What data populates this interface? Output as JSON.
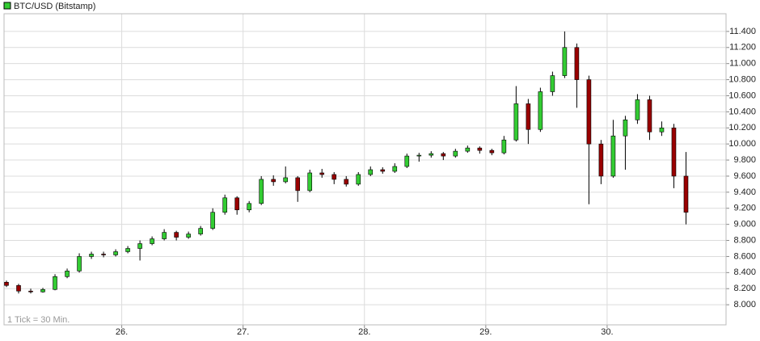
{
  "chart_data": {
    "type": "candlestick",
    "annotation": "1 Tick = 30 Min.",
    "series": [
      {
        "name": "BTC/USD (Bitstamp)",
        "up_color": "#33cc33",
        "down_color": "#990000",
        "open": [
          8280,
          8240,
          8170,
          8160,
          8190,
          8350,
          8420,
          8600,
          8630,
          8620,
          8660,
          8700,
          8760,
          8820,
          8900,
          8840,
          8880,
          8950,
          9150,
          9330,
          9180,
          9260,
          9560,
          9530,
          9580,
          9420,
          9640,
          9620,
          9560,
          9500,
          9620,
          9680,
          9660,
          9720,
          9850,
          9860,
          9880,
          9850,
          9910,
          9950,
          9920,
          9890,
          10050,
          10500,
          10180,
          10650,
          10850,
          11200,
          10800,
          10000,
          9600,
          10100,
          10300,
          10550,
          10150,
          10200,
          9600
        ],
        "high": [
          8300,
          8260,
          8200,
          8210,
          8380,
          8450,
          8640,
          8660,
          8660,
          8690,
          8730,
          8800,
          8850,
          8940,
          8920,
          8910,
          8980,
          9200,
          9370,
          9350,
          9290,
          9600,
          9610,
          9720,
          9600,
          9680,
          9690,
          9650,
          9600,
          9650,
          9720,
          9710,
          9760,
          9880,
          9890,
          9910,
          9900,
          9940,
          9980,
          9970,
          9940,
          10100,
          10720,
          10560,
          10700,
          10900,
          11400,
          11250,
          10850,
          10050,
          10300,
          10350,
          10620,
          10600,
          10280,
          10250,
          9900
        ],
        "low": [
          8220,
          8140,
          8140,
          8150,
          8180,
          8330,
          8400,
          8570,
          8590,
          8600,
          8640,
          8550,
          8740,
          8800,
          8800,
          8820,
          8860,
          8930,
          9120,
          9120,
          9150,
          9240,
          9480,
          9510,
          9280,
          9400,
          9580,
          9500,
          9470,
          9480,
          9600,
          9630,
          9640,
          9700,
          9780,
          9830,
          9800,
          9830,
          9890,
          9880,
          9860,
          9870,
          10030,
          10000,
          10150,
          10600,
          10820,
          10450,
          9250,
          9500,
          9580,
          9680,
          10250,
          10050,
          10100,
          9450,
          9000
        ],
        "close": [
          8240,
          8170,
          8160,
          8190,
          8350,
          8420,
          8600,
          8630,
          8620,
          8660,
          8700,
          8760,
          8820,
          8900,
          8840,
          8880,
          8950,
          9150,
          9330,
          9180,
          9260,
          9560,
          9530,
          9580,
          9420,
          9640,
          9620,
          9560,
          9500,
          9620,
          9680,
          9660,
          9720,
          9850,
          9860,
          9880,
          9850,
          9910,
          9950,
          9920,
          9890,
          10050,
          10500,
          10180,
          10650,
          10850,
          11200,
          10800,
          10000,
          9600,
          10100,
          10300,
          10550,
          10150,
          10200,
          9600,
          9150
        ]
      }
    ],
    "x": [
      25.05,
      25.15,
      25.25,
      25.35,
      25.45,
      25.55,
      25.65,
      25.75,
      25.85,
      25.95,
      26.05,
      26.15,
      26.25,
      26.35,
      26.45,
      26.55,
      26.65,
      26.75,
      26.85,
      26.95,
      27.05,
      27.15,
      27.25,
      27.35,
      27.45,
      27.55,
      27.65,
      27.75,
      27.85,
      27.95,
      28.05,
      28.15,
      28.25,
      28.35,
      28.45,
      28.55,
      28.65,
      28.75,
      28.85,
      28.95,
      29.05,
      29.15,
      29.25,
      29.35,
      29.45,
      29.55,
      29.65,
      29.75,
      29.85,
      29.95,
      30.05,
      30.15,
      30.25,
      30.35,
      30.45,
      30.55,
      30.65
    ],
    "xlim": [
      25.03,
      30.98
    ],
    "xticks": [
      {
        "value": 26,
        "label": "26."
      },
      {
        "value": 27,
        "label": "27."
      },
      {
        "value": 28,
        "label": "28."
      },
      {
        "value": 29,
        "label": "29."
      },
      {
        "value": 30,
        "label": "30."
      }
    ],
    "ylim": [
      7750,
      11620
    ],
    "yticks": [
      {
        "value": 8000,
        "label": "8.000"
      },
      {
        "value": 8200,
        "label": "8.200"
      },
      {
        "value": 8400,
        "label": "8.400"
      },
      {
        "value": 8600,
        "label": "8.600"
      },
      {
        "value": 8800,
        "label": "8.800"
      },
      {
        "value": 9000,
        "label": "9.000"
      },
      {
        "value": 9200,
        "label": "9.200"
      },
      {
        "value": 9400,
        "label": "9.400"
      },
      {
        "value": 9600,
        "label": "9.600"
      },
      {
        "value": 9800,
        "label": "9.800"
      },
      {
        "value": 10000,
        "label": "10.000"
      },
      {
        "value": 10200,
        "label": "10.200"
      },
      {
        "value": 10400,
        "label": "10.400"
      },
      {
        "value": 10600,
        "label": "10.600"
      },
      {
        "value": 10800,
        "label": "10.800"
      },
      {
        "value": 11000,
        "label": "11.000"
      },
      {
        "value": 11200,
        "label": "11.200"
      },
      {
        "value": 11400,
        "label": "11.400"
      }
    ],
    "grid": true
  }
}
